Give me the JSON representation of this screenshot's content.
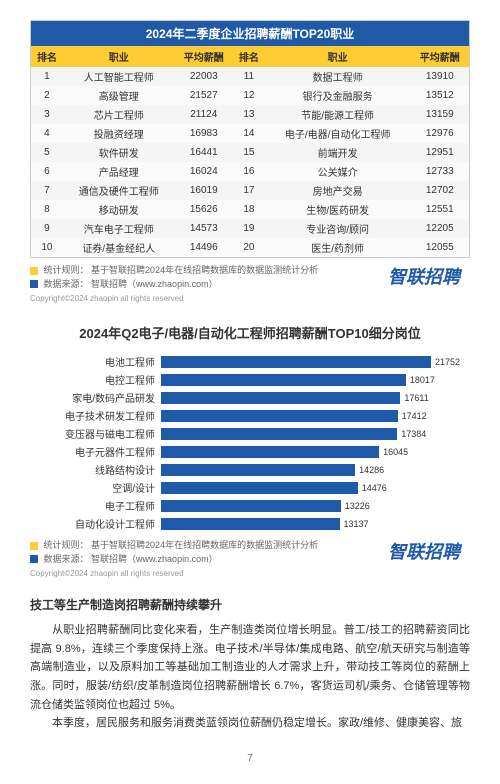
{
  "table": {
    "title": "2024年二季度企业招聘薪酬TOP20职业",
    "headers": [
      "排名",
      "职业",
      "平均薪酬",
      "排名",
      "职业",
      "平均薪酬"
    ],
    "rows": [
      [
        "1",
        "人工智能工程师",
        "22003",
        "11",
        "数据工程师",
        "13910"
      ],
      [
        "2",
        "高级管理",
        "21527",
        "12",
        "银行及金融服务",
        "13512"
      ],
      [
        "3",
        "芯片工程师",
        "21124",
        "13",
        "节能/能源工程师",
        "13159"
      ],
      [
        "4",
        "投融资经理",
        "16983",
        "14",
        "电子/电器/自动化工程师",
        "12976"
      ],
      [
        "5",
        "软件研发",
        "16441",
        "15",
        "前端开发",
        "12951"
      ],
      [
        "6",
        "产品经理",
        "16024",
        "16",
        "公关媒介",
        "12733"
      ],
      [
        "7",
        "通信及硬件工程师",
        "16019",
        "17",
        "房地产交易",
        "12702"
      ],
      [
        "8",
        "移动研发",
        "15626",
        "18",
        "生物/医药研发",
        "12551"
      ],
      [
        "9",
        "汽车电子工程师",
        "14573",
        "19",
        "专业咨询/顾问",
        "12205"
      ],
      [
        "10",
        "证券/基金经纪人",
        "14496",
        "20",
        "医生/药剂师",
        "12055"
      ]
    ]
  },
  "source": {
    "row1_label": "统计规则：",
    "row1_text": "基于智联招聘2024年在线招聘数据库的数据监测统计分析",
    "row2_label": "数据来源：",
    "row2_text": "智联招聘（www.zhaopin.com）",
    "logo": "智联招聘",
    "copyright": "Copyright©2024 zhaopin all rights reserved",
    "color1": "#ffcc33",
    "color2": "#1e5aa8"
  },
  "chart": {
    "title": "2024年Q2电子/电器/自动化工程师招聘薪酬TOP10细分岗位",
    "max": 22000,
    "bar_color": "#1e5aa8",
    "items": [
      {
        "label": "电池工程师",
        "value": 21752
      },
      {
        "label": "电控工程师",
        "value": 18017
      },
      {
        "label": "家电/数码产品研发",
        "value": 17611
      },
      {
        "label": "电子技术研发工程师",
        "value": 17412
      },
      {
        "label": "变压器与磁电工程师",
        "value": 17384
      },
      {
        "label": "电子元器件工程师",
        "value": 16045
      },
      {
        "label": "线路结构设计",
        "value": 14286
      },
      {
        "label": "空调/设计",
        "value": 14476
      },
      {
        "label": "电子工程师",
        "value": 13226
      },
      {
        "label": "自动化设计工程师",
        "value": 13137
      }
    ]
  },
  "section": {
    "title": "技工等生产制造岗招聘薪酬持续攀升",
    "p1": "从职业招聘薪酬同比变化来看，生产制造类岗位增长明显。普工/技工的招聘薪资同比提高 9.8%，连续三个季度保持上涨。电子技术/半导体/集成电路、航空/航天研究与制造等高端制造业，以及原料加工等基础加工制造业的人才需求上升，带动技工等岗位的薪酬上涨。同时，服装/纺织/皮革制造岗位招聘薪酬增长 6.7%，客货运司机/乘务、仓储管理等物流仓储类监领岗位也超过 5%。",
    "p2": "本季度，居民服务和服务消费类蓝领岗位薪酬仍稳定增长。家政/维修、健康美容、旅"
  },
  "page": "7"
}
